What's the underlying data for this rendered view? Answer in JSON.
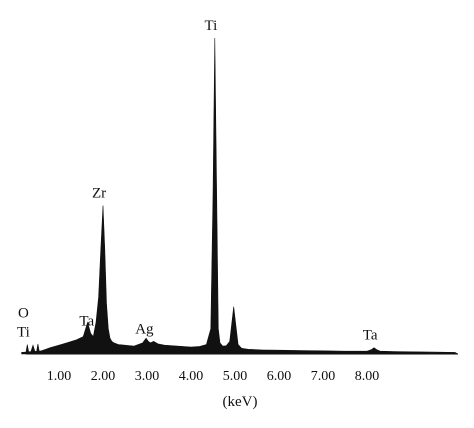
{
  "chart_data": {
    "type": "line",
    "title": "",
    "xlabel": "(keV)",
    "ylabel": "",
    "x_ticks": [
      "1.00",
      "2.00",
      "3.00",
      "4.00",
      "5.00",
      "6.00",
      "7.00",
      "8.00"
    ],
    "xlim": [
      0.1,
      10.0
    ],
    "ylim": [
      0,
      100
    ],
    "grid": false,
    "legend": "none",
    "color": "#111111",
    "series": [
      {
        "x": [
          0.15,
          0.25,
          0.28,
          0.31,
          0.36,
          0.41,
          0.45,
          0.49,
          0.52,
          0.55,
          0.6,
          0.7,
          0.8,
          1.0,
          1.2,
          1.4,
          1.55,
          1.65,
          1.72,
          1.78,
          1.84,
          1.9,
          1.95,
          2.0,
          2.04,
          2.08,
          2.12,
          2.16,
          2.2,
          2.25,
          2.35,
          2.5,
          2.7,
          2.9,
          2.98,
          3.03,
          3.08,
          3.15,
          3.25,
          3.4,
          3.6,
          3.8,
          4.0,
          4.2,
          4.35,
          4.45,
          4.5,
          4.54,
          4.58,
          4.62,
          4.66,
          4.72,
          4.8,
          4.88,
          4.93,
          4.97,
          5.02,
          5.07,
          5.15,
          5.3,
          5.6,
          6.0,
          6.5,
          7.0,
          7.5,
          8.0,
          8.1,
          8.16,
          8.22,
          8.3,
          8.6,
          9.0,
          9.5,
          10.0
        ],
        "y": [
          0.5,
          0.6,
          3.0,
          0.8,
          0.7,
          2.8,
          0.9,
          0.8,
          3.2,
          0.9,
          1.0,
          1.5,
          2.0,
          2.8,
          3.6,
          4.5,
          5.5,
          10.0,
          6.5,
          5.5,
          10.0,
          18.0,
          33.0,
          47.0,
          33.0,
          16.0,
          8.0,
          5.0,
          4.0,
          3.5,
          3.0,
          2.8,
          2.5,
          3.5,
          5.0,
          4.0,
          3.5,
          4.0,
          3.2,
          2.8,
          2.6,
          2.4,
          2.2,
          2.4,
          3.0,
          8.0,
          50.0,
          100.0,
          55.0,
          8.0,
          3.5,
          2.5,
          2.6,
          4.0,
          10.0,
          15.0,
          9.0,
          3.0,
          1.8,
          1.5,
          1.3,
          1.2,
          1.1,
          1.0,
          0.9,
          0.9,
          1.4,
          2.0,
          1.4,
          0.9,
          0.8,
          0.7,
          0.6,
          0.5
        ]
      }
    ],
    "annotations": [
      {
        "text": "O",
        "x": 0.28
      },
      {
        "text": "Ti",
        "x": 0.28
      },
      {
        "text": "Ta",
        "x": 1.72
      },
      {
        "text": "Zr",
        "x": 2.0
      },
      {
        "text": "Ag",
        "x": 3.03
      },
      {
        "text": "Ti",
        "x": 4.54
      },
      {
        "text": "Ta",
        "x": 8.16
      }
    ]
  }
}
